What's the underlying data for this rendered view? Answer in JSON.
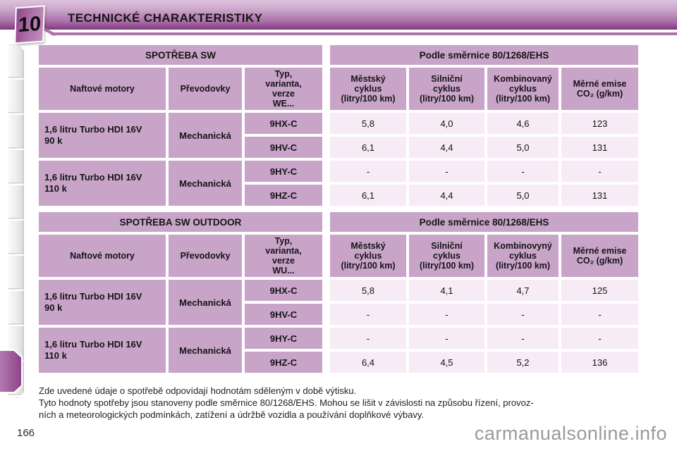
{
  "header": {
    "chapter_number": "10",
    "title": "TECHNICKÉ CHARAKTERISTIKY"
  },
  "colors": {
    "band_top": "#ddc3dd",
    "band_bottom": "#7b3a78",
    "accent_line": "#aa73aa",
    "cell_purple": "#c9a4c9",
    "cell_light": "#f7ebf5",
    "chapter_tab": "#8d4589",
    "watermark_gray": "#9a9a9a"
  },
  "tables": [
    {
      "section_left": "SPOTŘEBA SW",
      "section_right": "Podle směrnice 80/1268/EHS",
      "col_engine": "Naftové motory",
      "col_gearbox": "Převodovky",
      "col_type": "Typ,\nvarianta,\nverze\nWE...",
      "col_urban": "Městský\ncyklus\n(litry/100 km)",
      "col_road": "Silniční\ncyklus\n(litry/100 km)",
      "col_combined": "Kombinovaný\ncyklus\n(litry/100 km)",
      "col_emissions": "Měrné emise\nCO₂ (g/km)",
      "groups": [
        {
          "engine": "1,6 litru Turbo HDI 16V\n90 k",
          "gearbox": "Mechanická",
          "rows": [
            {
              "type": "9HX-C",
              "urban": "5,8",
              "road": "4,0",
              "combined": "4,6",
              "co2": "123"
            },
            {
              "type": "9HV-C",
              "urban": "6,1",
              "road": "4,4",
              "combined": "5,0",
              "co2": "131"
            }
          ]
        },
        {
          "engine": "1,6 litru Turbo HDI 16V\n110 k",
          "gearbox": "Mechanická",
          "rows": [
            {
              "type": "9HY-C",
              "urban": "-",
              "road": "-",
              "combined": "-",
              "co2": "-"
            },
            {
              "type": "9HZ-C",
              "urban": "6,1",
              "road": "4,4",
              "combined": "5,0",
              "co2": "131"
            }
          ]
        }
      ]
    },
    {
      "section_left": "SPOTŘEBA SW OUTDOOR",
      "section_right": "Podle směrnice 80/1268/EHS",
      "col_engine": "Naftové motory",
      "col_gearbox": "Převodovky",
      "col_type": "Typ,\nvarianta,\nverze\nWU...",
      "col_urban": "Městský\ncyklus\n(litry/100 km)",
      "col_road": "Silniční\ncyklus\n(litry/100 km)",
      "col_combined": "Kombinovyný\ncyklus\n(litry/100 km)",
      "col_emissions": "Měrné emise\nCO₂ (g/km)",
      "groups": [
        {
          "engine": "1,6 litru Turbo HDI 16V\n90 k",
          "gearbox": "Mechanická",
          "rows": [
            {
              "type": "9HX-C",
              "urban": "5,8",
              "road": "4,1",
              "combined": "4,7",
              "co2": "125"
            },
            {
              "type": "9HV-C",
              "urban": "-",
              "road": "-",
              "combined": "-",
              "co2": "-"
            }
          ]
        },
        {
          "engine": "1,6 litru Turbo HDI 16V\n110 k",
          "gearbox": "Mechanická",
          "rows": [
            {
              "type": "9HY-C",
              "urban": "-",
              "road": "-",
              "combined": "-",
              "co2": "-"
            },
            {
              "type": "9HZ-C",
              "urban": "6,4",
              "road": "4,5",
              "combined": "5,2",
              "co2": "136"
            }
          ]
        }
      ]
    }
  ],
  "footer": {
    "note": "Zde uvedené údaje o spotřebě odpovídají hodnotám sděleným v době výtisku.\nTyto hodnoty spotřeby jsou stanoveny podle směrnice 80/1268/EHS. Mohou se lišit v závislosti na způsobu řízení, provoz-\nních a meteorologických podmínkách, zatížení a údržbě vozidla a používání doplňkové výbavy."
  },
  "page": {
    "number": "166",
    "watermark": "carmanualsonline.info"
  }
}
